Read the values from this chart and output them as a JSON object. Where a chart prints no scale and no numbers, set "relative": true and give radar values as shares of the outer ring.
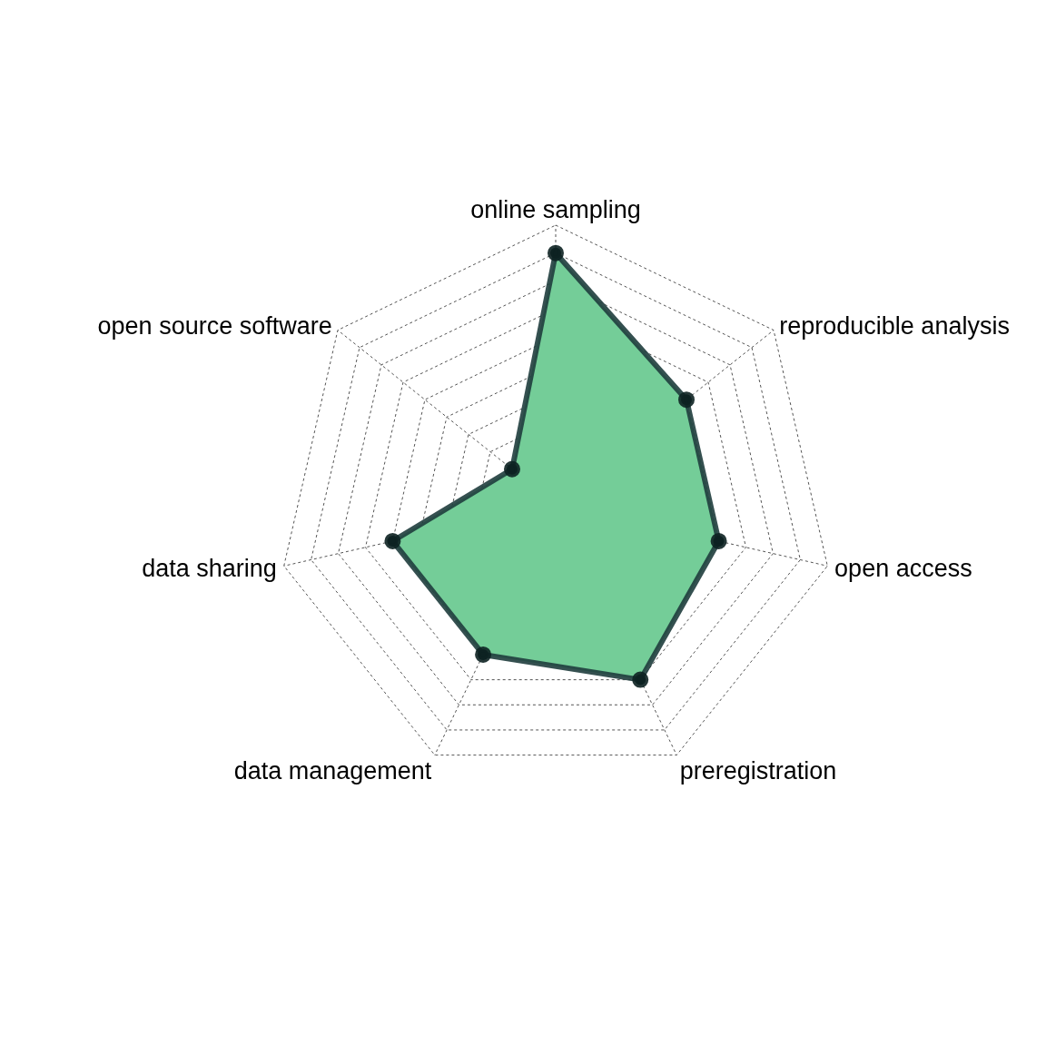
{
  "chart_data": {
    "type": "radar",
    "relative": true,
    "grid": true,
    "marker": "circle",
    "categories": [
      "online sampling",
      "reproducible analysis",
      "open access",
      "preregistration",
      "data management",
      "data sharing",
      "open source software"
    ],
    "series": [
      {
        "color": "#74cd98",
        "values": [
          0.9,
          0.6,
          0.6,
          0.7,
          0.6,
          0.6,
          0.2
        ]
      }
    ]
  }
}
